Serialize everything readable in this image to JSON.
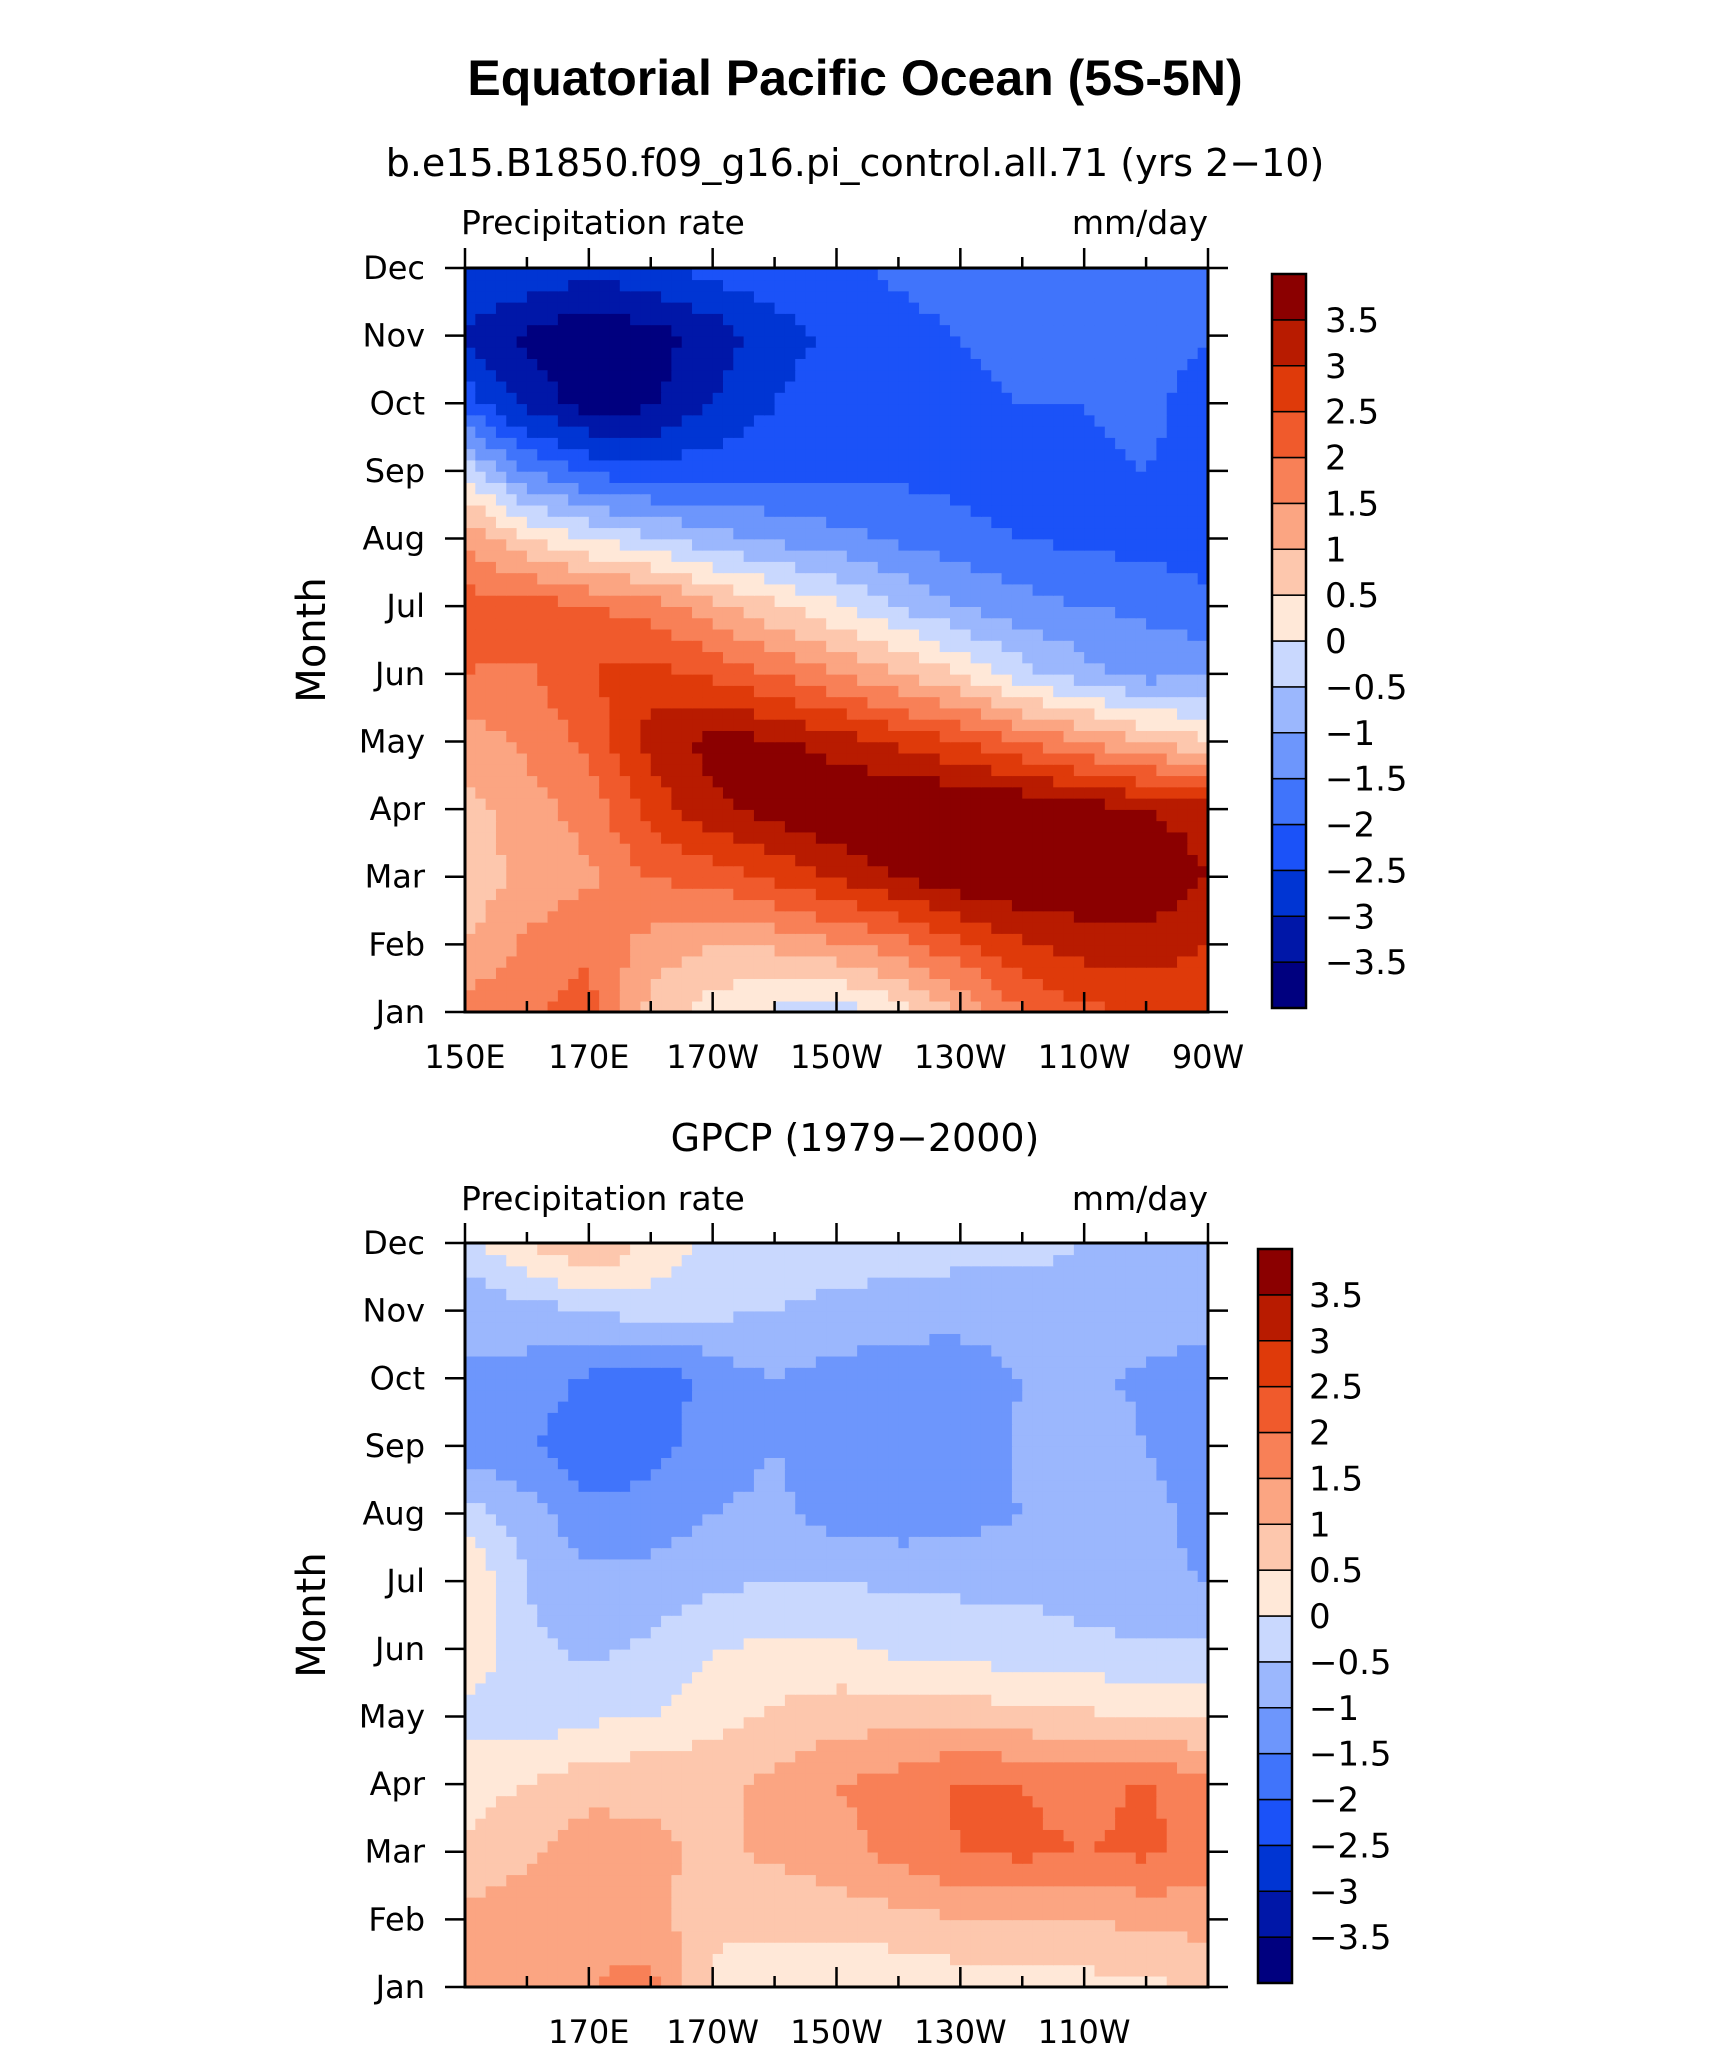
{
  "title": "Equatorial Pacific Ocean (5S-5N)",
  "colors": {
    "levels_cmap": [
      "#00007f",
      "#0017a8",
      "#0035d3",
      "#1b52f8",
      "#4074fb",
      "#6d96fc",
      "#9bb7fd",
      "#c9d8fe",
      "#ffe8d8",
      "#fdc7ad",
      "#fba582",
      "#f88057",
      "#f05a2c",
      "#df3a0a",
      "#b81b00",
      "#8b0000"
    ]
  },
  "chart_data": [
    {
      "type": "heatmap",
      "title": "b.e15.B1850.f09_g16.pi_control.all.71 (yrs 2−10)",
      "left_label": "Precipitation rate",
      "right_label": "mm/day",
      "ylabel": "Month",
      "xlabel": "",
      "x_ticks": [
        "150E",
        "170E",
        "170W",
        "150W",
        "130W",
        "110W",
        "90W"
      ],
      "x_range": [
        "150E",
        "90W"
      ],
      "y_ticks": [
        "Jan",
        "Feb",
        "Mar",
        "Apr",
        "May",
        "Jun",
        "Jul",
        "Aug",
        "Sep",
        "Oct",
        "Nov",
        "Dec"
      ],
      "colorbar_labels": [
        "3.5",
        "3",
        "2.5",
        "2",
        "1.5",
        "1",
        "0.5",
        "0",
        "−0.5",
        "−1",
        "−1.5",
        "−2",
        "−2.5",
        "−3",
        "−3.5"
      ],
      "longitudes_deg_east": [
        150,
        160,
        170,
        180,
        190,
        200,
        210,
        220,
        230,
        240,
        250,
        260,
        270
      ],
      "months": [
        "Jan",
        "Feb",
        "Mar",
        "Apr",
        "May",
        "Jun",
        "Jul",
        "Aug",
        "Sep",
        "Oct",
        "Nov",
        "Dec"
      ],
      "values": [
        [
          1.8,
          1.9,
          2.2,
          0.8,
          0.2,
          -0.1,
          -0.3,
          0.2,
          1.0,
          2.0,
          2.4,
          2.5,
          2.6
        ],
        [
          1.0,
          1.6,
          1.9,
          1.3,
          1.0,
          1.1,
          1.4,
          1.8,
          2.4,
          2.9,
          3.2,
          3.3,
          3.0
        ],
        [
          0.6,
          1.2,
          1.4,
          2.0,
          2.2,
          2.6,
          3.1,
          3.5,
          3.9,
          4.0,
          4.0,
          3.9,
          3.5
        ],
        [
          0.8,
          1.3,
          1.7,
          2.7,
          3.4,
          3.7,
          4.0,
          4.1,
          4.1,
          4.0,
          3.8,
          3.5,
          3.3
        ],
        [
          1.2,
          1.6,
          2.1,
          3.2,
          3.7,
          3.6,
          3.3,
          2.9,
          2.5,
          2.0,
          1.5,
          1.0,
          0.6
        ],
        [
          2.0,
          1.9,
          2.5,
          2.7,
          2.4,
          2.0,
          1.5,
          1.0,
          0.5,
          -0.3,
          -0.8,
          -1.2,
          -1.0
        ],
        [
          2.2,
          2.3,
          2.0,
          1.8,
          1.2,
          0.6,
          0.1,
          -0.5,
          -1.0,
          -1.3,
          -1.5,
          -1.6,
          -1.9
        ],
        [
          1.5,
          0.5,
          0.0,
          -0.4,
          -0.8,
          -1.1,
          -1.3,
          -1.6,
          -1.8,
          -2.0,
          -2.1,
          -2.2,
          -2.2
        ],
        [
          -0.2,
          -1.5,
          -2.1,
          -2.3,
          -2.2,
          -2.1,
          -2.2,
          -2.1,
          -2.2,
          -2.3,
          -2.1,
          -2.0,
          -2.1
        ],
        [
          -2.2,
          -3.2,
          -3.7,
          -3.6,
          -3.0,
          -2.5,
          -2.2,
          -2.1,
          -2.1,
          -2.0,
          -2.0,
          -1.9,
          -2.2
        ],
        [
          -3.1,
          -3.6,
          -4.0,
          -3.7,
          -3.3,
          -2.7,
          -2.4,
          -2.2,
          -2.0,
          -1.9,
          -1.8,
          -1.8,
          -2.0
        ],
        [
          -2.5,
          -2.6,
          -2.8,
          -2.6,
          -2.3,
          -2.2,
          -2.1,
          -1.9,
          -1.7,
          -1.6,
          -1.5,
          -1.5,
          -1.6
        ]
      ]
    },
    {
      "type": "heatmap",
      "title": "GPCP (1979−2000)",
      "left_label": "Precipitation rate",
      "right_label": "mm/day",
      "ylabel": "Month",
      "xlabel": "",
      "x_ticks": [
        "170E",
        "170W",
        "150W",
        "130W",
        "110W"
      ],
      "y_ticks": [
        "Jan",
        "Feb",
        "Mar",
        "Apr",
        "May",
        "Jun",
        "Jul",
        "Aug",
        "Sep",
        "Oct",
        "Nov",
        "Dec"
      ],
      "colorbar_labels": [
        "3.5",
        "3",
        "2.5",
        "2",
        "1.5",
        "1",
        "0.5",
        "0",
        "−0.5",
        "−1",
        "−1.5",
        "−2",
        "−2.5",
        "−3",
        "−3.5"
      ],
      "longitudes_deg_east": [
        150,
        160,
        170,
        180,
        190,
        200,
        210,
        220,
        230,
        240,
        250,
        260,
        270
      ],
      "months": [
        "Jan",
        "Feb",
        "Mar",
        "Apr",
        "May",
        "Jun",
        "Jul",
        "Aug",
        "Sep",
        "Oct",
        "Nov",
        "Dec"
      ],
      "values": [
        [
          1.2,
          1.3,
          1.5,
          1.7,
          0.4,
          0.2,
          0.1,
          0.1,
          0.2,
          0.2,
          0.3,
          0.4,
          0.5
        ],
        [
          1.2,
          1.3,
          1.3,
          1.2,
          0.6,
          0.6,
          0.7,
          0.8,
          1.0,
          1.0,
          1.0,
          1.1,
          1.2
        ],
        [
          0.6,
          0.9,
          1.3,
          1.1,
          0.9,
          1.1,
          1.3,
          1.7,
          2.0,
          2.1,
          2.0,
          2.1,
          1.8
        ],
        [
          0.3,
          0.5,
          0.8,
          0.9,
          0.9,
          1.1,
          1.5,
          1.7,
          2.1,
          2.0,
          1.8,
          2.1,
          1.6
        ],
        [
          -0.2,
          -0.3,
          -0.1,
          0.0,
          0.3,
          0.6,
          0.8,
          0.8,
          0.8,
          0.7,
          0.6,
          0.5,
          0.4
        ],
        [
          0.5,
          -0.4,
          -0.6,
          -0.4,
          0.0,
          0.1,
          0.1,
          -0.1,
          -0.2,
          -0.3,
          -0.4,
          -0.4,
          -0.4
        ],
        [
          0.5,
          -0.5,
          -0.9,
          -0.8,
          -0.6,
          -0.5,
          -0.5,
          -0.6,
          -0.6,
          -0.6,
          -0.7,
          -0.9,
          -1.0
        ],
        [
          -0.2,
          -0.8,
          -1.3,
          -1.3,
          -1.0,
          -0.9,
          -1.2,
          -1.3,
          -1.2,
          -1.0,
          -0.7,
          -0.8,
          -1.2
        ],
        [
          -1.3,
          -1.4,
          -1.9,
          -1.7,
          -1.2,
          -1.0,
          -1.3,
          -1.4,
          -1.3,
          -0.9,
          -0.7,
          -1.0,
          -1.3
        ],
        [
          -1.0,
          -1.2,
          -1.6,
          -1.9,
          -1.3,
          -1.0,
          -1.2,
          -1.4,
          -1.3,
          -1.0,
          -0.9,
          -1.1,
          -1.3
        ],
        [
          -1.0,
          -0.7,
          -0.5,
          -0.3,
          -0.4,
          -0.5,
          -0.6,
          -0.7,
          -0.8,
          -0.7,
          -0.6,
          -0.7,
          -0.8
        ],
        [
          -0.2,
          0.5,
          1.1,
          0.4,
          -0.2,
          -0.3,
          -0.3,
          -0.3,
          -0.3,
          -0.4,
          -0.5,
          -0.5,
          -0.5
        ]
      ]
    }
  ]
}
